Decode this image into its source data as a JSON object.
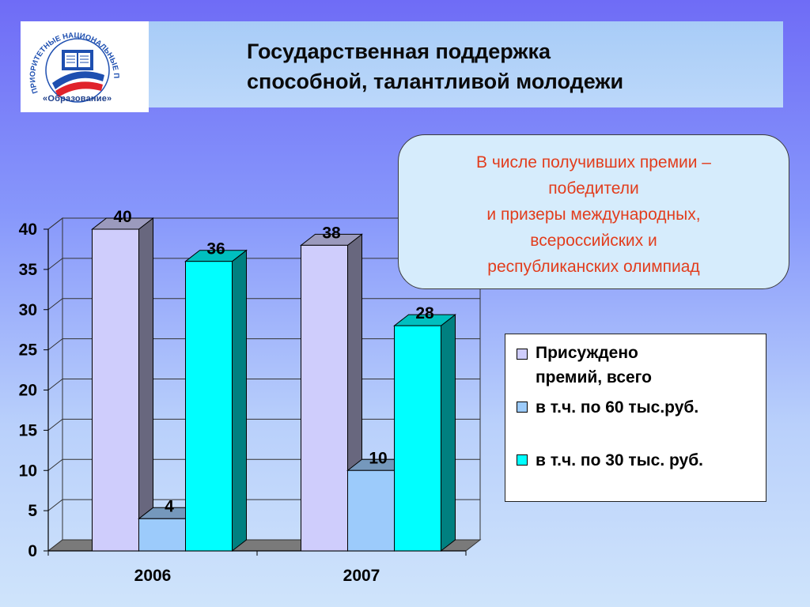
{
  "title": {
    "line1": "Государственная поддержка",
    "line2": "способной, талантливой молодежи"
  },
  "logo": {
    "arc_text": "ПРИОРИТЕТНЫЕ НАЦИОНАЛЬНЫЕ ПРОЕКТЫ",
    "caption": "«Образование»",
    "colors": {
      "blue": "#1e4fb0",
      "red": "#e0222a"
    }
  },
  "callout": {
    "lines": [
      "В числе получивших премии –",
      "победители",
      "и призеры международных,",
      "всероссийских и",
      "республиканских олимпиад"
    ]
  },
  "chart_data": {
    "type": "bar",
    "categories": [
      "2006",
      "2007"
    ],
    "series": [
      {
        "name": "Присуждено премий, всего",
        "values": [
          40,
          38
        ],
        "color": "#cfcdfc",
        "label_color": "#000000"
      },
      {
        "name": "в т.ч. по 60 тыс.руб.",
        "values": [
          4,
          10
        ],
        "color": "#9ccbfb",
        "label_color": "#000000"
      },
      {
        "name": "в т.ч. по 30 тыс. руб.",
        "values": [
          36,
          28
        ],
        "color": "#00ffff",
        "label_color": "#000000"
      }
    ],
    "data_labels": [
      [
        "40",
        "4",
        "36"
      ],
      [
        "38",
        "10",
        "28"
      ]
    ],
    "ylim": [
      0,
      40
    ],
    "yticks": [
      "0",
      "5",
      "10",
      "15",
      "20",
      "25",
      "30",
      "35",
      "40"
    ],
    "grid": true,
    "legend_position": "right",
    "style": "3d-column"
  },
  "legend": {
    "items": [
      {
        "label_line1": "Присуждено",
        "label_line2": "премий, всего",
        "color": "#cfcdfc"
      },
      {
        "label_line1": "в т.ч. по 60 тыс.руб.",
        "color": "#9ccbfb"
      },
      {
        "label_line1": "в т.ч. по 30 тыс. руб.",
        "color": "#00ffff"
      }
    ]
  }
}
